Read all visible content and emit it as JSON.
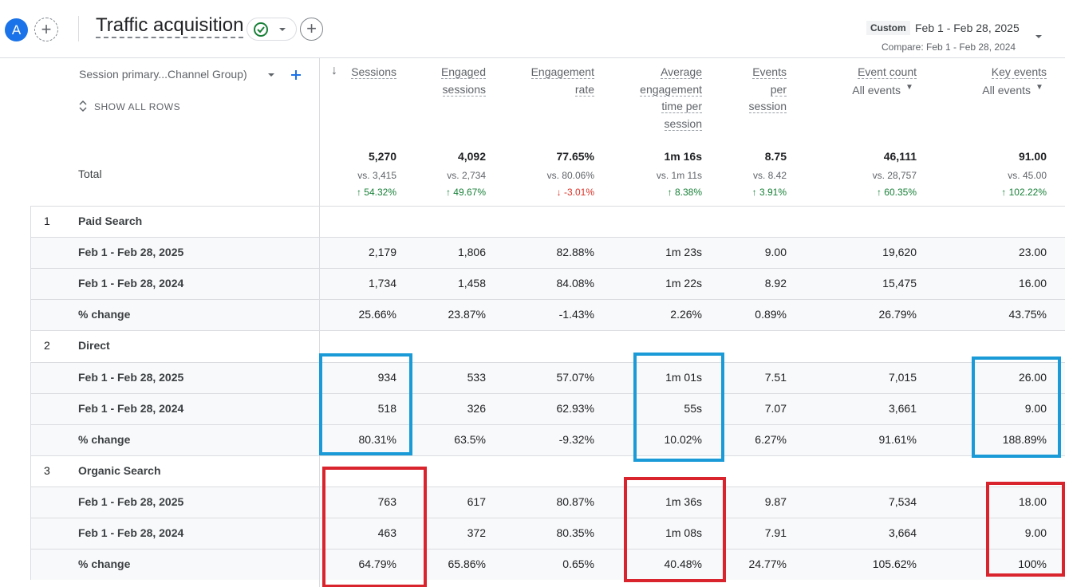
{
  "header": {
    "avatar": "A",
    "title": "Traffic acquisition",
    "date_label": "Custom",
    "date_range": "Feb 1 - Feb 28, 2025",
    "compare": "Compare: Feb 1 - Feb 28, 2024"
  },
  "table": {
    "dimension": "Session primary...Channel Group)",
    "show_all": "SHOW ALL ROWS",
    "columns": [
      {
        "label": "Sessions"
      },
      {
        "label": "Engaged sessions"
      },
      {
        "label": "Engagement rate"
      },
      {
        "label": "Average engagement time per session"
      },
      {
        "label": "Events per session"
      },
      {
        "label": "Event count",
        "sub": "All events"
      },
      {
        "label": "Key events",
        "sub": "All events"
      }
    ],
    "total": {
      "label": "Total",
      "values": [
        "5,270",
        "4,092",
        "77.65%",
        "1m 16s",
        "8.75",
        "46,111",
        "91.00"
      ],
      "compare": [
        "vs. 3,415",
        "vs. 2,734",
        "vs. 80.06%",
        "vs. 1m 11s",
        "vs. 8.42",
        "vs. 28,757",
        "vs. 45.00"
      ],
      "change": [
        "54.32%",
        "49.67%",
        "-3.01%",
        "8.38%",
        "3.91%",
        "60.35%",
        "102.22%"
      ],
      "change_direction": [
        "up",
        "up",
        "down",
        "up",
        "up",
        "up",
        "up"
      ]
    },
    "groups": [
      {
        "index": "1",
        "name": "Paid Search",
        "rows": [
          {
            "label": "Feb 1 - Feb 28, 2025",
            "values": [
              "2,179",
              "1,806",
              "82.88%",
              "1m 23s",
              "9.00",
              "19,620",
              "23.00"
            ]
          },
          {
            "label": "Feb 1 - Feb 28, 2024",
            "values": [
              "1,734",
              "1,458",
              "84.08%",
              "1m 22s",
              "8.92",
              "15,475",
              "16.00"
            ]
          },
          {
            "label": "% change",
            "values": [
              "25.66%",
              "23.87%",
              "-1.43%",
              "2.26%",
              "0.89%",
              "26.79%",
              "43.75%"
            ]
          }
        ]
      },
      {
        "index": "2",
        "name": "Direct",
        "rows": [
          {
            "label": "Feb 1 - Feb 28, 2025",
            "values": [
              "934",
              "533",
              "57.07%",
              "1m 01s",
              "7.51",
              "7,015",
              "26.00"
            ]
          },
          {
            "label": "Feb 1 - Feb 28, 2024",
            "values": [
              "518",
              "326",
              "62.93%",
              "55s",
              "7.07",
              "3,661",
              "9.00"
            ]
          },
          {
            "label": "% change",
            "values": [
              "80.31%",
              "63.5%",
              "-9.32%",
              "10.02%",
              "6.27%",
              "91.61%",
              "188.89%"
            ]
          }
        ]
      },
      {
        "index": "3",
        "name": "Organic Search",
        "rows": [
          {
            "label": "Feb 1 - Feb 28, 2025",
            "values": [
              "763",
              "617",
              "80.87%",
              "1m 36s",
              "9.87",
              "7,534",
              "18.00"
            ]
          },
          {
            "label": "Feb 1 - Feb 28, 2024",
            "values": [
              "463",
              "372",
              "80.35%",
              "1m 08s",
              "7.91",
              "3,664",
              "9.00"
            ]
          },
          {
            "label": "% change",
            "values": [
              "64.79%",
              "65.86%",
              "0.65%",
              "40.48%",
              "24.77%",
              "105.62%",
              "100%"
            ]
          }
        ]
      }
    ]
  }
}
